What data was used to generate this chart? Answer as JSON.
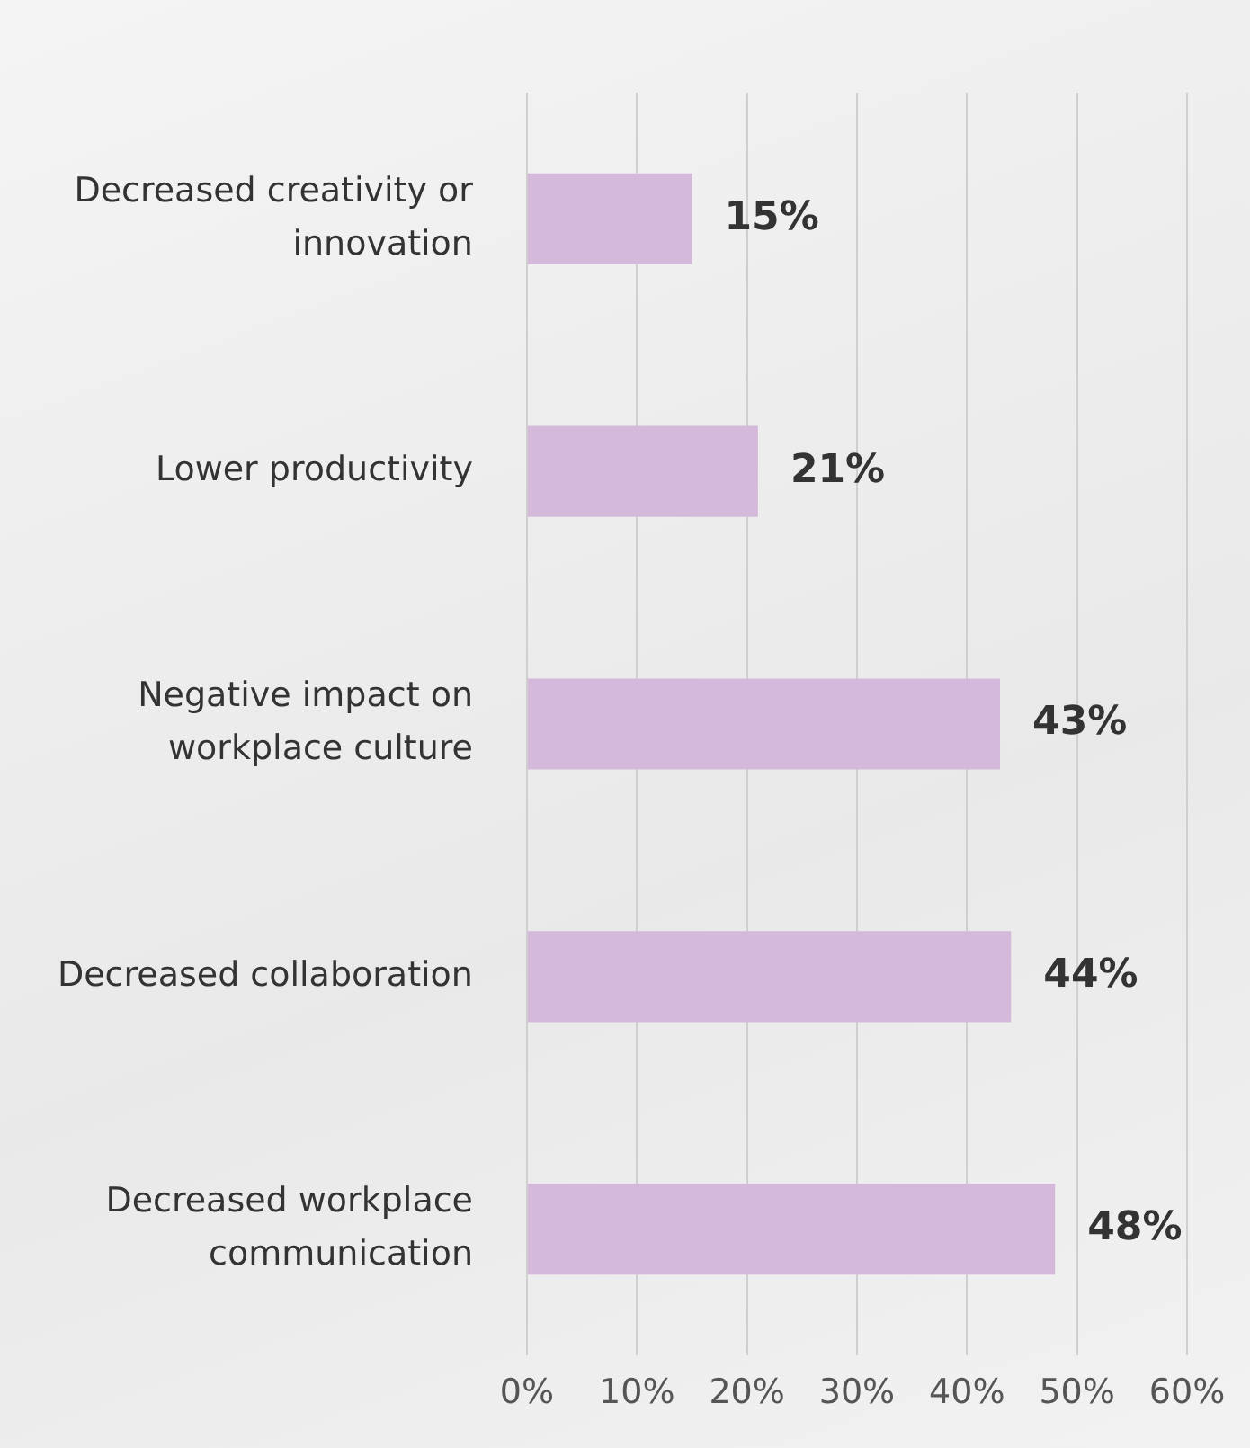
{
  "chart_data": {
    "type": "bar",
    "orientation": "horizontal",
    "categories": [
      "Decreased creativity or innovation",
      "Lower productivity",
      "Negative impact on workplace culture",
      "Decreased collaboration",
      "Decreased workplace communication"
    ],
    "values": [
      15,
      21,
      43,
      44,
      48
    ],
    "value_labels": [
      "15%",
      "21%",
      "43%",
      "44%",
      "48%"
    ],
    "color": "#d5b9da",
    "xlim": [
      0,
      60
    ],
    "xticks": [
      {
        "value": 0,
        "label": "0%"
      },
      {
        "value": 10,
        "label": "10%"
      },
      {
        "value": 20,
        "label": "20%"
      },
      {
        "value": 30,
        "label": "30%"
      },
      {
        "value": 40,
        "label": "40%"
      },
      {
        "value": 50,
        "label": "50%"
      },
      {
        "value": 60,
        "label": "60%"
      }
    ],
    "grid": "x",
    "legend": false
  }
}
